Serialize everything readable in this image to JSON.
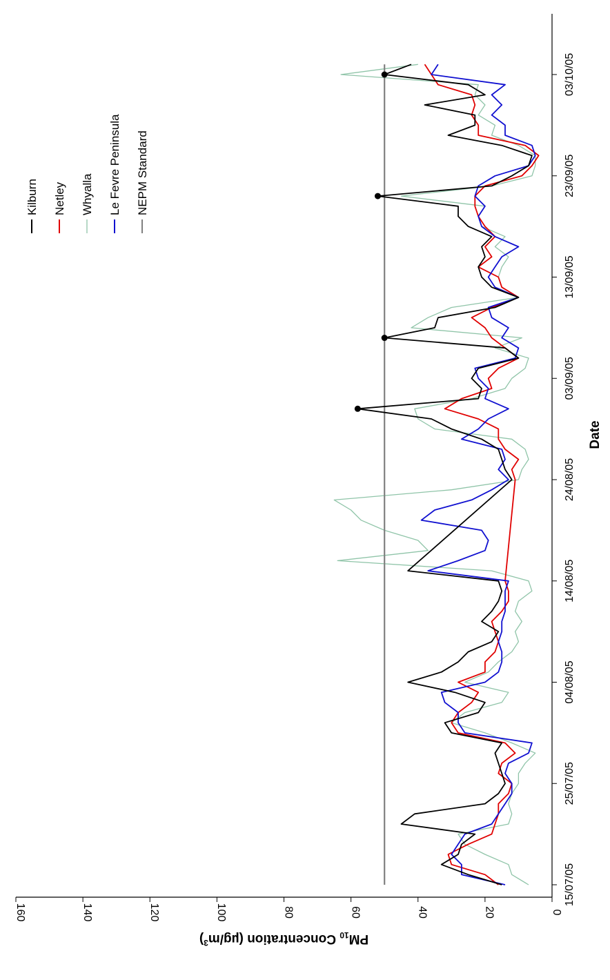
{
  "chart_data": {
    "type": "line",
    "orientation": "rotated 90 degrees clockwise",
    "xlabel": "Date",
    "ylabel_base": "PM",
    "ylabel_sub": "10",
    "ylabel_mid": " Concentration (µg/m",
    "ylabel_sup": "3",
    "ylabel_end": ")",
    "ylim": [
      0,
      160
    ],
    "y_ticks": [
      0,
      20,
      40,
      60,
      80,
      100,
      120,
      140,
      160
    ],
    "x_range_days": [
      0,
      82
    ],
    "x_tick_labels": [
      "15/07/05",
      "25/07/05",
      "04/08/05",
      "14/08/05",
      "24/08/05",
      "03/09/05",
      "13/09/05",
      "23/09/05",
      "03/10/05"
    ],
    "x_tick_days": [
      0,
      10,
      20,
      30,
      40,
      50,
      60,
      70,
      80
    ],
    "legend_position": "top-right",
    "colors": {
      "Kilburn": "#000000",
      "Netley": "#e00000",
      "Whyalla": "#8fc4a8",
      "Le Fevre Peninsula": "#1010d0",
      "NEPM Standard": "#808080"
    },
    "series": [
      {
        "name": "Kilburn",
        "values": [
          [
            0,
            15
          ],
          [
            1,
            25
          ],
          [
            2,
            33
          ],
          [
            3,
            28
          ],
          [
            4,
            27
          ],
          [
            5,
            23
          ],
          [
            6,
            45
          ],
          [
            7,
            41
          ],
          [
            8,
            20
          ],
          [
            9,
            16
          ],
          [
            10,
            14
          ],
          [
            11,
            15
          ],
          [
            12,
            16
          ],
          [
            13,
            17
          ],
          [
            14,
            15
          ],
          [
            15,
            30
          ],
          [
            16,
            32
          ],
          [
            17,
            22
          ],
          [
            18,
            20
          ],
          [
            19,
            29
          ],
          [
            20,
            43
          ],
          [
            21,
            33
          ],
          [
            22,
            28
          ],
          [
            23,
            25
          ],
          [
            24,
            18
          ],
          [
            25,
            16
          ],
          [
            26,
            21
          ],
          [
            27,
            18
          ],
          [
            28,
            16
          ],
          [
            29,
            15
          ],
          [
            30,
            16
          ],
          [
            31,
            43
          ],
          [
            40,
            12
          ],
          [
            41,
            14
          ],
          [
            42,
            15
          ],
          [
            43,
            16
          ],
          [
            44,
            21
          ],
          [
            45,
            30
          ],
          [
            46,
            36
          ],
          [
            47,
            58
          ],
          [
            48,
            22
          ],
          [
            49,
            21
          ],
          [
            50,
            24
          ],
          [
            51,
            22
          ],
          [
            52,
            10
          ],
          [
            53,
            14
          ],
          [
            54,
            50
          ],
          [
            55,
            35
          ],
          [
            56,
            34
          ],
          [
            57,
            17
          ],
          [
            58,
            10
          ],
          [
            59,
            18
          ],
          [
            60,
            21
          ],
          [
            61,
            22
          ],
          [
            62,
            20
          ],
          [
            63,
            21
          ],
          [
            64,
            18
          ],
          [
            65,
            25
          ],
          [
            66,
            28
          ],
          [
            67,
            28
          ],
          [
            68,
            52
          ],
          [
            69,
            18
          ],
          [
            70,
            12
          ],
          [
            71,
            7
          ],
          [
            72,
            6
          ],
          [
            73,
            15
          ],
          [
            74,
            31
          ],
          [
            75,
            23
          ],
          [
            76,
            23
          ],
          [
            77,
            38
          ],
          [
            78,
            20
          ],
          [
            79,
            25
          ],
          [
            80,
            50
          ],
          [
            81,
            42
          ]
        ]
      },
      {
        "name": "Netley",
        "values": [
          [
            0,
            16
          ],
          [
            1,
            20
          ],
          [
            2,
            30
          ],
          [
            3,
            31
          ],
          [
            4,
            25
          ],
          [
            5,
            18
          ],
          [
            6,
            17
          ],
          [
            7,
            16
          ],
          [
            8,
            16
          ],
          [
            9,
            13
          ],
          [
            10,
            12
          ],
          [
            11,
            16
          ],
          [
            12,
            15
          ],
          [
            13,
            11
          ],
          [
            14,
            14
          ],
          [
            15,
            28
          ],
          [
            16,
            30
          ],
          [
            17,
            28
          ],
          [
            18,
            24
          ],
          [
            19,
            22
          ],
          [
            20,
            28
          ],
          [
            21,
            20
          ],
          [
            22,
            20
          ],
          [
            23,
            17
          ],
          [
            24,
            16
          ],
          [
            25,
            17
          ],
          [
            26,
            18
          ],
          [
            27,
            15
          ],
          [
            28,
            13
          ],
          [
            29,
            13
          ],
          [
            30,
            14
          ],
          [
            40,
            11
          ],
          [
            41,
            12
          ],
          [
            42,
            10
          ],
          [
            43,
            14
          ],
          [
            44,
            16
          ],
          [
            45,
            16
          ],
          [
            46,
            22
          ],
          [
            47,
            32
          ],
          [
            48,
            27
          ],
          [
            49,
            18
          ],
          [
            50,
            19
          ],
          [
            51,
            16
          ],
          [
            52,
            10
          ],
          [
            53,
            14
          ],
          [
            54,
            18
          ],
          [
            55,
            20
          ],
          [
            56,
            24
          ],
          [
            57,
            18
          ],
          [
            58,
            10
          ],
          [
            59,
            15
          ],
          [
            60,
            16
          ],
          [
            61,
            22
          ],
          [
            62,
            18
          ],
          [
            63,
            20
          ],
          [
            64,
            17
          ],
          [
            65,
            20
          ],
          [
            66,
            22
          ],
          [
            67,
            23
          ],
          [
            68,
            23
          ],
          [
            69,
            20
          ],
          [
            70,
            9
          ],
          [
            71,
            6
          ],
          [
            72,
            4
          ],
          [
            73,
            8
          ],
          [
            74,
            22
          ],
          [
            75,
            22
          ],
          [
            76,
            24
          ],
          [
            77,
            23
          ],
          [
            78,
            24
          ],
          [
            79,
            34
          ],
          [
            80,
            36
          ],
          [
            81,
            38
          ]
        ]
      },
      {
        "name": "Whyalla",
        "values": [
          [
            0,
            7
          ],
          [
            1,
            12
          ],
          [
            2,
            13
          ],
          [
            3,
            20
          ],
          [
            4,
            26
          ],
          [
            5,
            28
          ],
          [
            6,
            13
          ],
          [
            7,
            12
          ],
          [
            8,
            13
          ],
          [
            9,
            12
          ],
          [
            10,
            10
          ],
          [
            11,
            10
          ],
          [
            12,
            8
          ],
          [
            13,
            5
          ],
          [
            14,
            12
          ],
          [
            15,
            20
          ],
          [
            16,
            30
          ],
          [
            17,
            26
          ],
          [
            18,
            15
          ],
          [
            19,
            13
          ],
          [
            20,
            26
          ],
          [
            21,
            19
          ],
          [
            22,
            16
          ],
          [
            23,
            12
          ],
          [
            24,
            10
          ],
          [
            25,
            11
          ],
          [
            26,
            9
          ],
          [
            27,
            11
          ],
          [
            28,
            10
          ],
          [
            29,
            6
          ],
          [
            30,
            7
          ],
          [
            31,
            18
          ],
          [
            32,
            64
          ],
          [
            33,
            37
          ],
          [
            34,
            40
          ],
          [
            35,
            50
          ],
          [
            36,
            57
          ],
          [
            37,
            60
          ],
          [
            38,
            65
          ],
          [
            39,
            30
          ],
          [
            40,
            10
          ],
          [
            41,
            9
          ],
          [
            42,
            7
          ],
          [
            43,
            8
          ],
          [
            44,
            12
          ],
          [
            45,
            35
          ],
          [
            46,
            40
          ],
          [
            47,
            41
          ],
          [
            48,
            24
          ],
          [
            49,
            14
          ],
          [
            50,
            12
          ],
          [
            51,
            8
          ],
          [
            52,
            7
          ],
          [
            53,
            17
          ],
          [
            54,
            9
          ],
          [
            55,
            42
          ],
          [
            56,
            37
          ],
          [
            57,
            30
          ],
          [
            58,
            10
          ],
          [
            59,
            15
          ],
          [
            60,
            16
          ],
          [
            61,
            15
          ],
          [
            62,
            13
          ],
          [
            63,
            17
          ],
          [
            64,
            14
          ],
          [
            65,
            21
          ],
          [
            66,
            22
          ],
          [
            67,
            20
          ],
          [
            68,
            45
          ],
          [
            69,
            18
          ],
          [
            70,
            6
          ],
          [
            71,
            5
          ],
          [
            72,
            5
          ],
          [
            73,
            10
          ],
          [
            74,
            18
          ],
          [
            75,
            17
          ],
          [
            76,
            22
          ],
          [
            77,
            20
          ],
          [
            78,
            23
          ],
          [
            79,
            22
          ],
          [
            80,
            63
          ],
          [
            81,
            40
          ]
        ]
      },
      {
        "name": "Le Fevre Peninsula",
        "values": [
          [
            0,
            14
          ],
          [
            1,
            27
          ],
          [
            2,
            27
          ],
          [
            3,
            30
          ],
          [
            4,
            28
          ],
          [
            5,
            26
          ],
          [
            6,
            18
          ],
          [
            7,
            16
          ],
          [
            8,
            14
          ],
          [
            9,
            12
          ],
          [
            10,
            12
          ],
          [
            11,
            14
          ],
          [
            12,
            13
          ],
          [
            13,
            7
          ],
          [
            14,
            6
          ],
          [
            15,
            26
          ],
          [
            16,
            28
          ],
          [
            17,
            28
          ],
          [
            18,
            32
          ],
          [
            19,
            33
          ],
          [
            20,
            20
          ],
          [
            21,
            16
          ],
          [
            22,
            15
          ],
          [
            23,
            15
          ],
          [
            24,
            16
          ],
          [
            25,
            15
          ],
          [
            26,
            15
          ],
          [
            27,
            14
          ],
          [
            28,
            14
          ],
          [
            29,
            14
          ],
          [
            30,
            13
          ],
          [
            31,
            37
          ],
          [
            32,
            28
          ],
          [
            33,
            20
          ],
          [
            34,
            19
          ],
          [
            35,
            21
          ],
          [
            36,
            39
          ],
          [
            37,
            35
          ],
          [
            38,
            24
          ],
          [
            39,
            18
          ],
          [
            40,
            13
          ],
          [
            41,
            16
          ],
          [
            42,
            14
          ],
          [
            43,
            15
          ],
          [
            44,
            27
          ],
          [
            45,
            22
          ],
          [
            46,
            19
          ],
          [
            47,
            13
          ],
          [
            48,
            20
          ],
          [
            49,
            19
          ],
          [
            50,
            22
          ],
          [
            51,
            23
          ],
          [
            52,
            11
          ],
          [
            53,
            10
          ],
          [
            54,
            15
          ],
          [
            55,
            13
          ],
          [
            56,
            18
          ],
          [
            57,
            19
          ],
          [
            58,
            10
          ],
          [
            59,
            17
          ],
          [
            60,
            19
          ],
          [
            61,
            17
          ],
          [
            62,
            15
          ],
          [
            63,
            10
          ],
          [
            64,
            17
          ],
          [
            65,
            21
          ],
          [
            66,
            22
          ],
          [
            67,
            20
          ],
          [
            68,
            23
          ],
          [
            69,
            22
          ],
          [
            70,
            17
          ],
          [
            71,
            7
          ],
          [
            72,
            5
          ],
          [
            73,
            6
          ],
          [
            74,
            14
          ],
          [
            75,
            14
          ],
          [
            76,
            18
          ],
          [
            77,
            15
          ],
          [
            78,
            18
          ],
          [
            79,
            14
          ],
          [
            80,
            36
          ],
          [
            81,
            34
          ]
        ]
      },
      {
        "name": "NEPM Standard",
        "values": [
          [
            0,
            50
          ],
          [
            81,
            50
          ]
        ],
        "markers": [
          [
            47,
            58
          ],
          [
            54,
            50
          ],
          [
            68,
            52
          ],
          [
            80,
            50
          ]
        ]
      }
    ]
  }
}
